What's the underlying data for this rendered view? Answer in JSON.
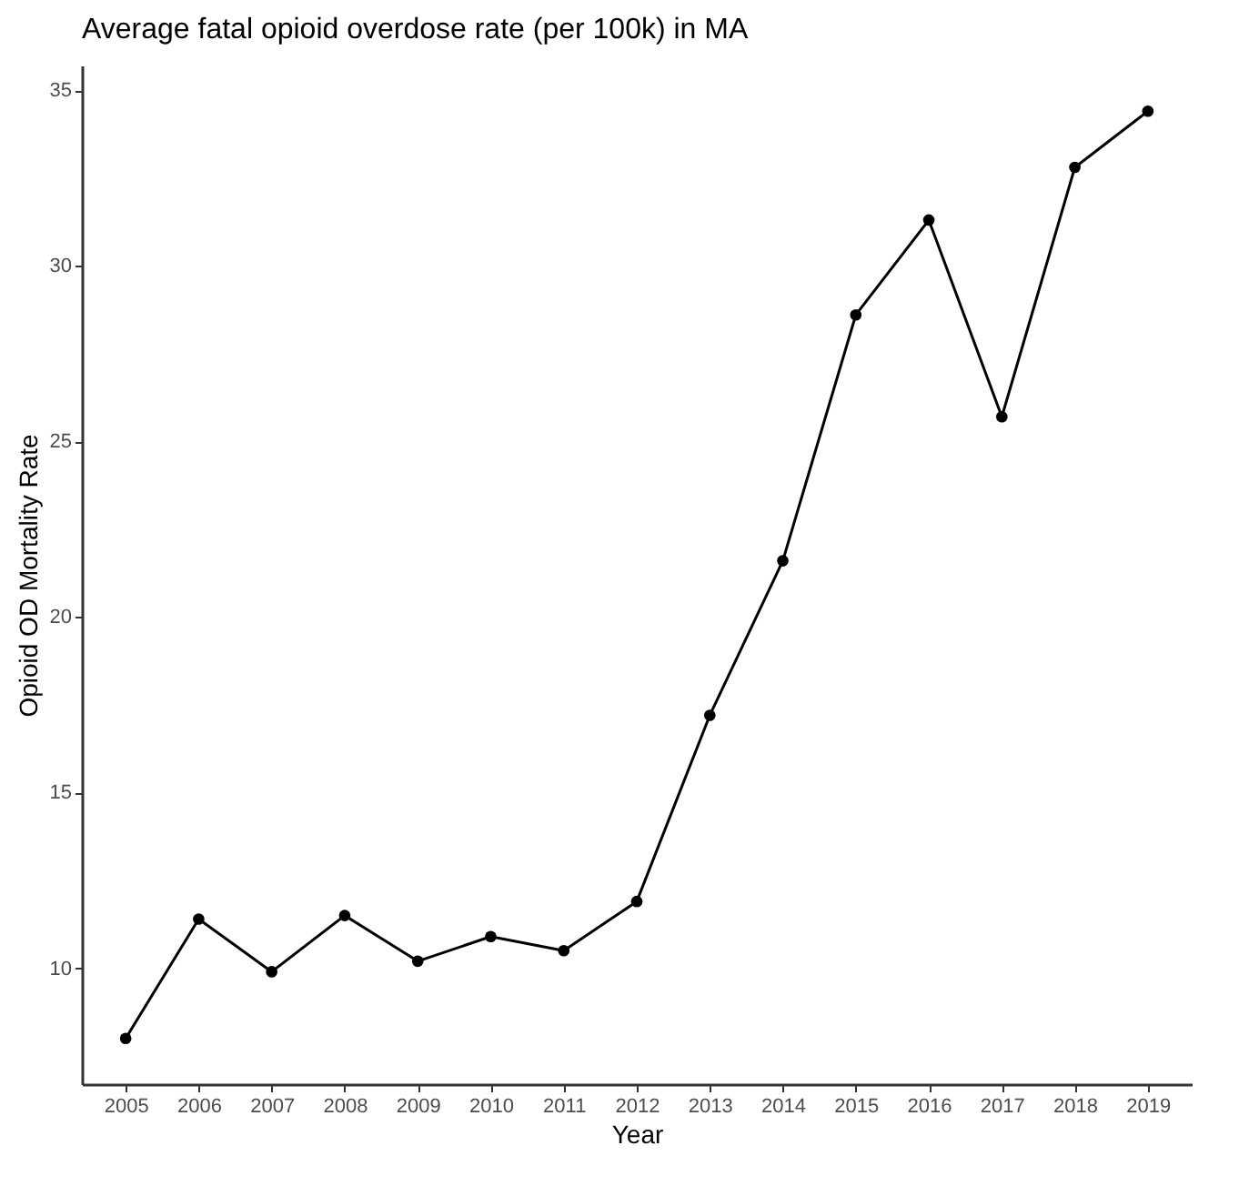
{
  "chart_data": {
    "type": "line",
    "title": "Average fatal opioid overdose rate (per 100k) in MA",
    "xlabel": "Year",
    "ylabel": "Opioid OD Mortality Rate",
    "categories": [
      "2005",
      "2006",
      "2007",
      "2008",
      "2009",
      "2010",
      "2011",
      "2012",
      "2013",
      "2014",
      "2015",
      "2016",
      "2017",
      "2018",
      "2019"
    ],
    "series": [
      {
        "color": "#000000",
        "values": [
          8.0,
          11.4,
          9.9,
          11.5,
          10.2,
          10.9,
          10.5,
          11.9,
          17.2,
          21.6,
          28.6,
          31.3,
          25.7,
          32.8,
          34.4
        ]
      }
    ],
    "ylim": [
      6.7,
      35.7
    ],
    "yticks": [
      10,
      15,
      20,
      25,
      30,
      35
    ],
    "grid": false,
    "marker": "circle",
    "line_style": "solid"
  }
}
